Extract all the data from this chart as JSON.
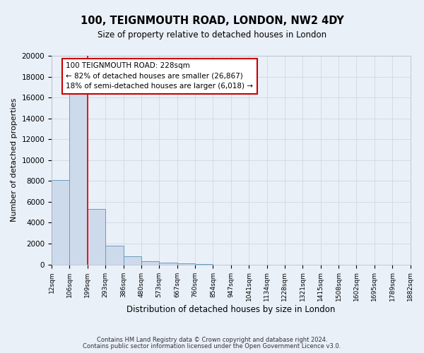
{
  "title": "100, TEIGNMOUTH ROAD, LONDON, NW2 4DY",
  "subtitle": "Size of property relative to detached houses in London",
  "xlabel": "Distribution of detached houses by size in London",
  "ylabel": "Number of detached properties",
  "bar_values": [
    8100,
    16600,
    5300,
    1800,
    800,
    300,
    150,
    100,
    50,
    0,
    0,
    0,
    0,
    0,
    0,
    0,
    0,
    0,
    0,
    0
  ],
  "bar_labels": [
    "12sqm",
    "106sqm",
    "199sqm",
    "293sqm",
    "386sqm",
    "480sqm",
    "573sqm",
    "667sqm",
    "760sqm",
    "854sqm",
    "947sqm",
    "1041sqm",
    "1134sqm",
    "1228sqm",
    "1321sqm",
    "1415sqm",
    "1508sqm",
    "1602sqm",
    "1695sqm",
    "1789sqm",
    "1882sqm"
  ],
  "bar_color": "#cddaeb",
  "bar_edge_color": "#6a9bbf",
  "bar_edge_width": 0.7,
  "red_line_x": 2.0,
  "ylim": [
    0,
    20000
  ],
  "yticks": [
    0,
    2000,
    4000,
    6000,
    8000,
    10000,
    12000,
    14000,
    16000,
    18000,
    20000
  ],
  "annotation_title": "100 TEIGNMOUTH ROAD: 228sqm",
  "annotation_line1": "← 82% of detached houses are smaller (26,867)",
  "annotation_line2": "18% of semi-detached houses are larger (6,018) →",
  "annotation_box_color": "#ffffff",
  "annotation_box_edge": "#cc0000",
  "footnote1": "Contains HM Land Registry data © Crown copyright and database right 2024.",
  "footnote2": "Contains public sector information licensed under the Open Government Licence v3.0.",
  "grid_color": "#d0d8e8",
  "bg_color": "#eaf0f8",
  "num_bins": 20
}
